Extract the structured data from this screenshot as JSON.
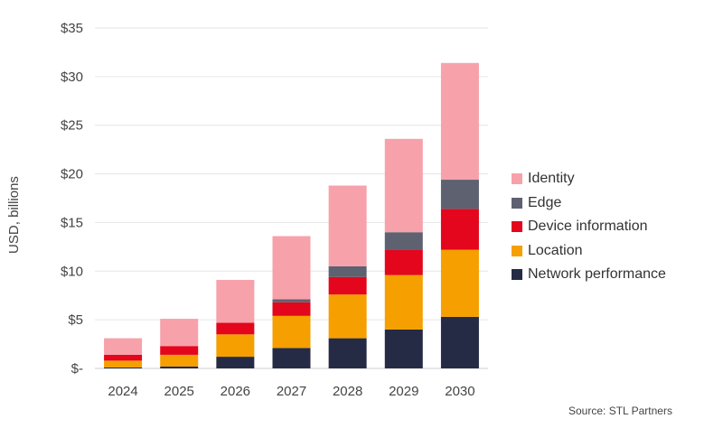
{
  "chart_data": {
    "type": "bar",
    "stacked": true,
    "categories": [
      "2024",
      "2025",
      "2026",
      "2027",
      "2028",
      "2029",
      "2030"
    ],
    "series": [
      {
        "name": "Network performance",
        "color": "#262b45",
        "values": [
          0.1,
          0.2,
          1.2,
          2.1,
          3.1,
          4.0,
          5.3
        ]
      },
      {
        "name": "Location",
        "color": "#f59f00",
        "values": [
          0.7,
          1.2,
          2.3,
          3.3,
          4.5,
          5.6,
          6.9
        ]
      },
      {
        "name": "Device information",
        "color": "#e3061c",
        "values": [
          0.6,
          0.9,
          1.2,
          1.4,
          1.8,
          2.6,
          4.2
        ]
      },
      {
        "name": "Edge",
        "color": "#5d6170",
        "values": [
          0.0,
          0.0,
          0.0,
          0.3,
          1.1,
          1.8,
          3.0
        ]
      },
      {
        "name": "Identity",
        "color": "#f7a1ab",
        "values": [
          1.7,
          2.8,
          4.4,
          6.5,
          8.3,
          9.6,
          12.0
        ]
      }
    ],
    "ylabel": "USD, billions",
    "xlabel": "",
    "ylim": [
      0,
      35
    ],
    "yticks": [
      0,
      5,
      10,
      15,
      20,
      25,
      30,
      35
    ],
    "ytick_labels": [
      "$-",
      "$5",
      "$10",
      "$15",
      "$20",
      "$25",
      "$30",
      "$35"
    ],
    "grid": true,
    "legend_position": "right",
    "legend_order": [
      "Identity",
      "Edge",
      "Device information",
      "Location",
      "Network performance"
    ]
  },
  "source": "Source: STL Partners"
}
